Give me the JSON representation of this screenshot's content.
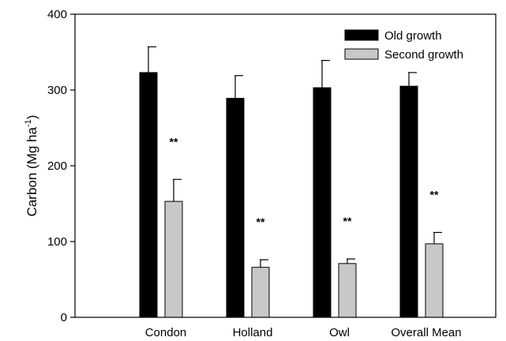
{
  "chart_data": {
    "type": "bar",
    "title": "",
    "xlabel": "",
    "ylabel": "Carbon (Mg ha",
    "ylabel_superscript": "-1",
    "ylabel_close": ")",
    "ylim": [
      0,
      400
    ],
    "yticks": [
      0,
      100,
      200,
      300,
      400
    ],
    "categories": [
      "Condon",
      "Holland",
      "Owl",
      "Overall Mean"
    ],
    "legend_position": "top-right",
    "series": [
      {
        "name": "Old growth",
        "color": "#000000",
        "values": [
          323,
          289,
          303,
          305
        ],
        "errors": [
          34,
          30,
          36,
          18
        ]
      },
      {
        "name": "Second growth",
        "color": "#c8c8c8",
        "values": [
          153,
          66,
          71,
          97
        ],
        "errors": [
          29,
          10,
          6,
          15
        ]
      }
    ],
    "annotations": [
      "**",
      "**",
      "**",
      "**"
    ]
  }
}
